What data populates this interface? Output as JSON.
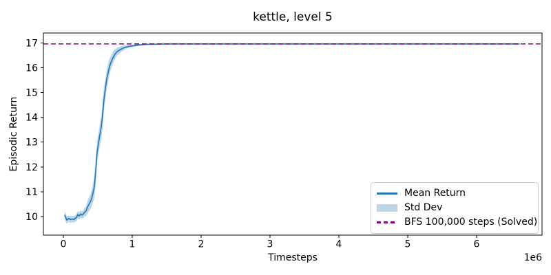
{
  "figure": {
    "title": "kettle, level 5",
    "xlabel": "Timesteps",
    "ylabel": "Episodic Return",
    "x_offset_label": "1e6"
  },
  "legend": {
    "position": "lower right",
    "items": [
      {
        "label": "Mean Return",
        "type": "line",
        "color": "#1f77b4"
      },
      {
        "label": "Std Dev",
        "type": "patch",
        "color": "#bcd6e8"
      },
      {
        "label": "BFS 100,000 steps (Solved)",
        "type": "dashed",
        "color": "#800080"
      }
    ]
  },
  "colors": {
    "mean_line": "#1f77b4",
    "std_band": "#1f77b4",
    "std_band_opacity": 0.3,
    "reference_line": "#800080",
    "axes": "#000000",
    "background": "#ffffff"
  },
  "chart_data": {
    "type": "line",
    "title": "kettle, level 5",
    "xlabel": "Timesteps",
    "ylabel": "Episodic Return",
    "x_unit_multiplier": 1000000,
    "x_offset_text": "1e6",
    "xlim": [
      -0.29,
      6.95
    ],
    "ylim": [
      9.25,
      17.4
    ],
    "x_ticks": [
      0,
      1,
      2,
      3,
      4,
      5,
      6
    ],
    "y_ticks": [
      10,
      11,
      12,
      13,
      14,
      15,
      16,
      17
    ],
    "grid": false,
    "legend_position": "lower right",
    "series": [
      {
        "name": "Mean Return",
        "color": "#1f77b4",
        "band_name": "Std Dev",
        "x": [
          0.02,
          0.05,
          0.08,
          0.1,
          0.13,
          0.15,
          0.17,
          0.19,
          0.21,
          0.23,
          0.25,
          0.27,
          0.29,
          0.31,
          0.33,
          0.35,
          0.37,
          0.39,
          0.41,
          0.43,
          0.45,
          0.47,
          0.49,
          0.51,
          0.53,
          0.55,
          0.57,
          0.59,
          0.61,
          0.63,
          0.65,
          0.67,
          0.69,
          0.72,
          0.75,
          0.78,
          0.82,
          0.86,
          0.9,
          0.95,
          1.0,
          1.1,
          1.2,
          1.35,
          1.5,
          2.0,
          2.5,
          3.0,
          3.5,
          4.0,
          4.5,
          5.0,
          5.5,
          6.0,
          6.3,
          6.62
        ],
        "mean": [
          10.05,
          9.86,
          9.92,
          9.88,
          9.9,
          9.88,
          9.92,
          9.96,
          10.08,
          10.02,
          10.1,
          10.06,
          10.1,
          10.18,
          10.22,
          10.38,
          10.48,
          10.58,
          10.72,
          10.95,
          11.2,
          11.85,
          12.6,
          12.95,
          13.3,
          13.6,
          14.1,
          14.75,
          15.15,
          15.55,
          15.8,
          16.05,
          16.2,
          16.4,
          16.55,
          16.65,
          16.72,
          16.78,
          16.82,
          16.86,
          16.88,
          16.92,
          16.94,
          16.95,
          16.96,
          16.96,
          16.96,
          16.96,
          16.96,
          16.96,
          16.96,
          16.96,
          16.96,
          16.96,
          16.96,
          16.96
        ],
        "std": [
          0.18,
          0.15,
          0.12,
          0.14,
          0.12,
          0.14,
          0.12,
          0.15,
          0.15,
          0.14,
          0.16,
          0.14,
          0.16,
          0.18,
          0.2,
          0.25,
          0.28,
          0.3,
          0.33,
          0.38,
          0.45,
          0.5,
          0.45,
          0.42,
          0.45,
          0.48,
          0.5,
          0.45,
          0.42,
          0.4,
          0.38,
          0.32,
          0.28,
          0.25,
          0.2,
          0.16,
          0.13,
          0.1,
          0.08,
          0.06,
          0.05,
          0.04,
          0.03,
          0.02,
          0.01,
          0.005,
          0.005,
          0.005,
          0.005,
          0.005,
          0.005,
          0.005,
          0.005,
          0.005,
          0.005,
          0.005
        ]
      }
    ],
    "reference_line": {
      "label": "BFS 100,000 steps (Solved)",
      "value": 16.96,
      "color": "#800080",
      "style": "dashed"
    }
  }
}
